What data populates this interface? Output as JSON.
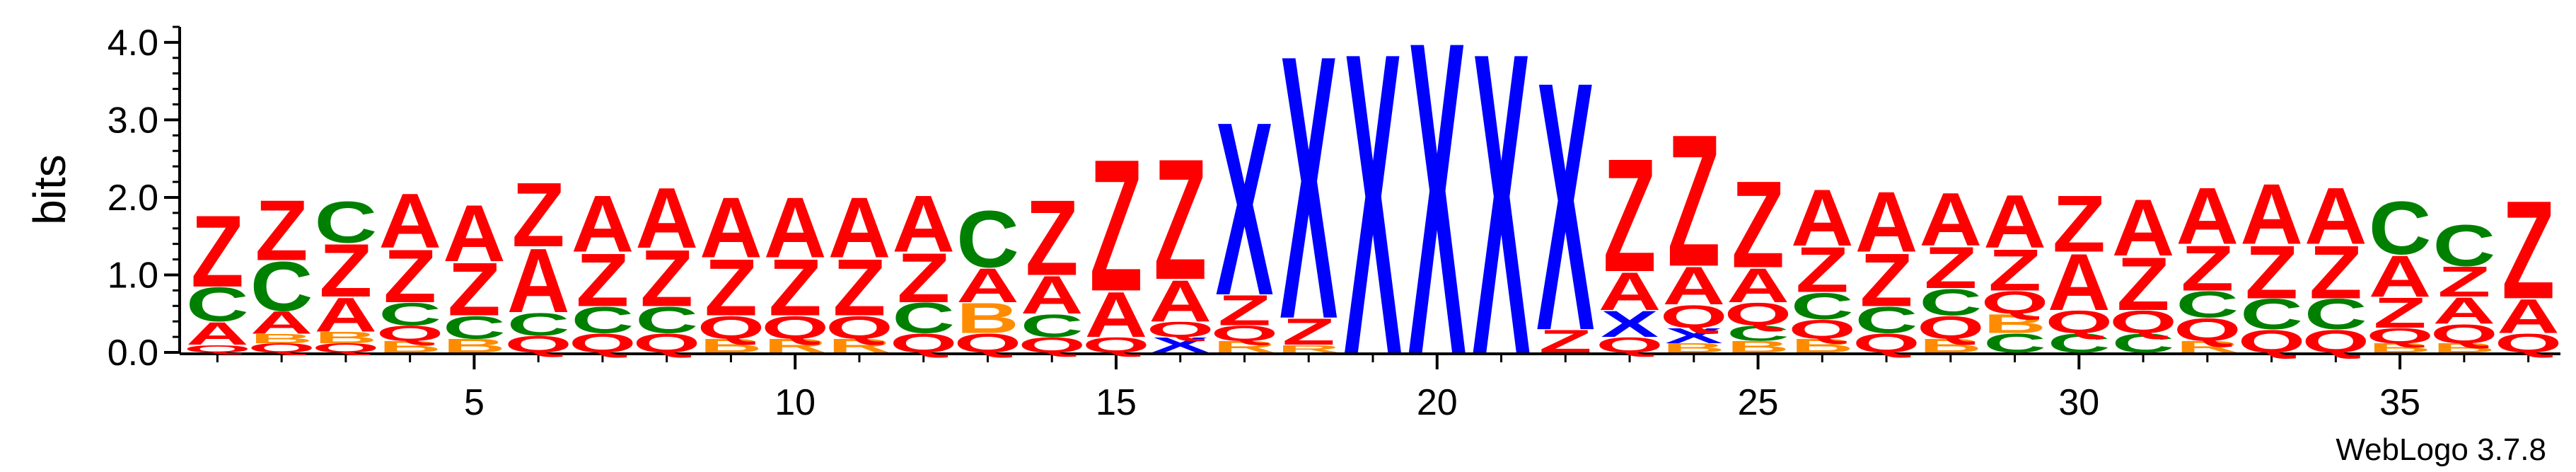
{
  "chart_data": {
    "type": "sequence-logo",
    "ylabel": "bits",
    "ylim": [
      0,
      4.2
    ],
    "yticks": [
      0.0,
      1.0,
      2.0,
      3.0,
      4.0
    ],
    "ytick_labels": [
      "0.0",
      "1.0",
      "2.0",
      "3.0",
      "4.0"
    ],
    "x_range": [
      1,
      37
    ],
    "xticks": [
      5,
      10,
      15,
      20,
      25,
      30,
      35
    ],
    "xtick_labels": [
      "5",
      "10",
      "15",
      "20",
      "25",
      "30",
      "35"
    ],
    "colors": {
      "Z": "#ff0000",
      "A": "#ff0000",
      "X": "#0000ff",
      "C": "#008000",
      "Q": "#ff0000",
      "B": "#ff8c00",
      "R": "#ff8c00"
    },
    "positions": [
      {
        "pos": 1,
        "stack": [
          {
            "letter": "Q",
            "height": 0.1
          },
          {
            "letter": "A",
            "height": 0.3
          },
          {
            "letter": "C",
            "height": 0.45
          },
          {
            "letter": "Z",
            "height": 0.95
          }
        ]
      },
      {
        "pos": 2,
        "stack": [
          {
            "letter": "Q",
            "height": 0.12
          },
          {
            "letter": "B",
            "height": 0.12
          },
          {
            "letter": "A",
            "height": 0.3
          },
          {
            "letter": "C",
            "height": 0.65
          },
          {
            "letter": "Z",
            "height": 0.8
          }
        ]
      },
      {
        "pos": 3,
        "stack": [
          {
            "letter": "Q",
            "height": 0.12
          },
          {
            "letter": "B",
            "height": 0.15
          },
          {
            "letter": "A",
            "height": 0.45
          },
          {
            "letter": "Z",
            "height": 0.7
          },
          {
            "letter": "C",
            "height": 0.55
          }
        ]
      },
      {
        "pos": 4,
        "stack": [
          {
            "letter": "B",
            "height": 0.15
          },
          {
            "letter": "Q",
            "height": 0.2
          },
          {
            "letter": "C",
            "height": 0.3
          },
          {
            "letter": "Z",
            "height": 0.7
          },
          {
            "letter": "A",
            "height": 0.72
          }
        ]
      },
      {
        "pos": 5,
        "stack": [
          {
            "letter": "B",
            "height": 0.18
          },
          {
            "letter": "C",
            "height": 0.3
          },
          {
            "letter": "Z",
            "height": 0.7
          },
          {
            "letter": "A",
            "height": 0.75
          }
        ]
      },
      {
        "pos": 6,
        "stack": [
          {
            "letter": "Q",
            "height": 0.22
          },
          {
            "letter": "C",
            "height": 0.3
          },
          {
            "letter": "A",
            "height": 0.85
          },
          {
            "letter": "Z",
            "height": 0.85
          }
        ]
      },
      {
        "pos": 7,
        "stack": [
          {
            "letter": "Q",
            "height": 0.25
          },
          {
            "letter": "C",
            "height": 0.35
          },
          {
            "letter": "Z",
            "height": 0.7
          },
          {
            "letter": "A",
            "height": 0.75
          }
        ]
      },
      {
        "pos": 8,
        "stack": [
          {
            "letter": "Q",
            "height": 0.25
          },
          {
            "letter": "C",
            "height": 0.35
          },
          {
            "letter": "Z",
            "height": 0.75
          },
          {
            "letter": "A",
            "height": 0.8
          }
        ]
      },
      {
        "pos": 9,
        "stack": [
          {
            "letter": "B",
            "height": 0.18
          },
          {
            "letter": "Q",
            "height": 0.3
          },
          {
            "letter": "Z",
            "height": 0.75
          },
          {
            "letter": "A",
            "height": 0.8
          }
        ]
      },
      {
        "pos": 10,
        "stack": [
          {
            "letter": "R",
            "height": 0.18
          },
          {
            "letter": "Q",
            "height": 0.3
          },
          {
            "letter": "Z",
            "height": 0.75
          },
          {
            "letter": "A",
            "height": 0.8
          }
        ]
      },
      {
        "pos": 11,
        "stack": [
          {
            "letter": "R",
            "height": 0.18
          },
          {
            "letter": "Q",
            "height": 0.3
          },
          {
            "letter": "Z",
            "height": 0.75
          },
          {
            "letter": "A",
            "height": 0.8
          }
        ]
      },
      {
        "pos": 12,
        "stack": [
          {
            "letter": "Q",
            "height": 0.25
          },
          {
            "letter": "C",
            "height": 0.4
          },
          {
            "letter": "Z",
            "height": 0.65
          },
          {
            "letter": "A",
            "height": 0.75
          }
        ]
      },
      {
        "pos": 13,
        "stack": [
          {
            "letter": "Q",
            "height": 0.25
          },
          {
            "letter": "B",
            "height": 0.4
          },
          {
            "letter": "A",
            "height": 0.45
          },
          {
            "letter": "C",
            "height": 0.75
          }
        ]
      },
      {
        "pos": 14,
        "stack": [
          {
            "letter": "Q",
            "height": 0.2
          },
          {
            "letter": "C",
            "height": 0.3
          },
          {
            "letter": "A",
            "height": 0.5
          },
          {
            "letter": "Z",
            "height": 1.0
          }
        ]
      },
      {
        "pos": 15,
        "stack": [
          {
            "letter": "Q",
            "height": 0.2
          },
          {
            "letter": "A",
            "height": 0.6
          },
          {
            "letter": "Z",
            "height": 1.75
          }
        ]
      },
      {
        "pos": 16,
        "stack": [
          {
            "letter": "X",
            "height": 0.2
          },
          {
            "letter": "Q",
            "height": 0.2
          },
          {
            "letter": "A",
            "height": 0.55
          },
          {
            "letter": "Z",
            "height": 1.6
          }
        ]
      },
      {
        "pos": 17,
        "stack": [
          {
            "letter": "R",
            "height": 0.15
          },
          {
            "letter": "Q",
            "height": 0.2
          },
          {
            "letter": "Z",
            "height": 0.4
          },
          {
            "letter": "X",
            "height": 2.3
          }
        ]
      },
      {
        "pos": 18,
        "stack": [
          {
            "letter": "R",
            "height": 0.1
          },
          {
            "letter": "Z",
            "height": 0.35
          },
          {
            "letter": "X",
            "height": 3.5
          }
        ]
      },
      {
        "pos": 19,
        "stack": [
          {
            "letter": "X",
            "height": 4.0
          }
        ]
      },
      {
        "pos": 20,
        "stack": [
          {
            "letter": "X",
            "height": 4.15
          }
        ]
      },
      {
        "pos": 21,
        "stack": [
          {
            "letter": "X",
            "height": 4.0
          }
        ]
      },
      {
        "pos": 22,
        "stack": [
          {
            "letter": "Z",
            "height": 0.3
          },
          {
            "letter": "X",
            "height": 3.3
          }
        ]
      },
      {
        "pos": 23,
        "stack": [
          {
            "letter": "Q",
            "height": 0.2
          },
          {
            "letter": "X",
            "height": 0.35
          },
          {
            "letter": "A",
            "height": 0.5
          },
          {
            "letter": "Z",
            "height": 1.5
          }
        ]
      },
      {
        "pos": 24,
        "stack": [
          {
            "letter": "B",
            "height": 0.12
          },
          {
            "letter": "X",
            "height": 0.2
          },
          {
            "letter": "Q",
            "height": 0.3
          },
          {
            "letter": "A",
            "height": 0.5
          },
          {
            "letter": "Z",
            "height": 1.75
          }
        ]
      },
      {
        "pos": 25,
        "stack": [
          {
            "letter": "B",
            "height": 0.15
          },
          {
            "letter": "C",
            "height": 0.2
          },
          {
            "letter": "Q",
            "height": 0.3
          },
          {
            "letter": "A",
            "height": 0.45
          },
          {
            "letter": "Z",
            "height": 1.15
          }
        ]
      },
      {
        "pos": 26,
        "stack": [
          {
            "letter": "B",
            "height": 0.18
          },
          {
            "letter": "Q",
            "height": 0.25
          },
          {
            "letter": "C",
            "height": 0.35
          },
          {
            "letter": "Z",
            "height": 0.6
          },
          {
            "letter": "A",
            "height": 0.75
          }
        ]
      },
      {
        "pos": 27,
        "stack": [
          {
            "letter": "Q",
            "height": 0.25
          },
          {
            "letter": "C",
            "height": 0.35
          },
          {
            "letter": "Z",
            "height": 0.7
          },
          {
            "letter": "A",
            "height": 0.8
          }
        ]
      },
      {
        "pos": 28,
        "stack": [
          {
            "letter": "B",
            "height": 0.18
          },
          {
            "letter": "Q",
            "height": 0.3
          },
          {
            "letter": "C",
            "height": 0.35
          },
          {
            "letter": "Z",
            "height": 0.55
          },
          {
            "letter": "A",
            "height": 0.7
          }
        ]
      },
      {
        "pos": 29,
        "stack": [
          {
            "letter": "C",
            "height": 0.25
          },
          {
            "letter": "B",
            "height": 0.25
          },
          {
            "letter": "Q",
            "height": 0.3
          },
          {
            "letter": "Z",
            "height": 0.55
          },
          {
            "letter": "A",
            "height": 0.7
          }
        ]
      },
      {
        "pos": 30,
        "stack": [
          {
            "letter": "C",
            "height": 0.25
          },
          {
            "letter": "Q",
            "height": 0.3
          },
          {
            "letter": "A",
            "height": 0.75
          },
          {
            "letter": "Z",
            "height": 0.75
          }
        ]
      },
      {
        "pos": 31,
        "stack": [
          {
            "letter": "C",
            "height": 0.25
          },
          {
            "letter": "Q",
            "height": 0.3
          },
          {
            "letter": "Z",
            "height": 0.7
          },
          {
            "letter": "A",
            "height": 0.75
          }
        ]
      },
      {
        "pos": 32,
        "stack": [
          {
            "letter": "R",
            "height": 0.15
          },
          {
            "letter": "Q",
            "height": 0.3
          },
          {
            "letter": "C",
            "height": 0.35
          },
          {
            "letter": "Z",
            "height": 0.6
          },
          {
            "letter": "A",
            "height": 0.75
          }
        ]
      },
      {
        "pos": 33,
        "stack": [
          {
            "letter": "Q",
            "height": 0.3
          },
          {
            "letter": "C",
            "height": 0.4
          },
          {
            "letter": "Z",
            "height": 0.7
          },
          {
            "letter": "A",
            "height": 0.8
          }
        ]
      },
      {
        "pos": 34,
        "stack": [
          {
            "letter": "Q",
            "height": 0.3
          },
          {
            "letter": "C",
            "height": 0.4
          },
          {
            "letter": "Z",
            "height": 0.7
          },
          {
            "letter": "A",
            "height": 0.75
          }
        ]
      },
      {
        "pos": 35,
        "stack": [
          {
            "letter": "B",
            "height": 0.12
          },
          {
            "letter": "Q",
            "height": 0.2
          },
          {
            "letter": "Z",
            "height": 0.4
          },
          {
            "letter": "A",
            "height": 0.55
          },
          {
            "letter": "C",
            "height": 0.7
          }
        ]
      },
      {
        "pos": 36,
        "stack": [
          {
            "letter": "B",
            "height": 0.12
          },
          {
            "letter": "Q",
            "height": 0.25
          },
          {
            "letter": "A",
            "height": 0.35
          },
          {
            "letter": "Z",
            "height": 0.4
          },
          {
            "letter": "C",
            "height": 0.55
          }
        ]
      },
      {
        "pos": 37,
        "stack": [
          {
            "letter": "Q",
            "height": 0.25
          },
          {
            "letter": "A",
            "height": 0.45
          },
          {
            "letter": "Z",
            "height": 1.3
          }
        ]
      }
    ]
  },
  "credit": "WebLogo 3.7.8"
}
